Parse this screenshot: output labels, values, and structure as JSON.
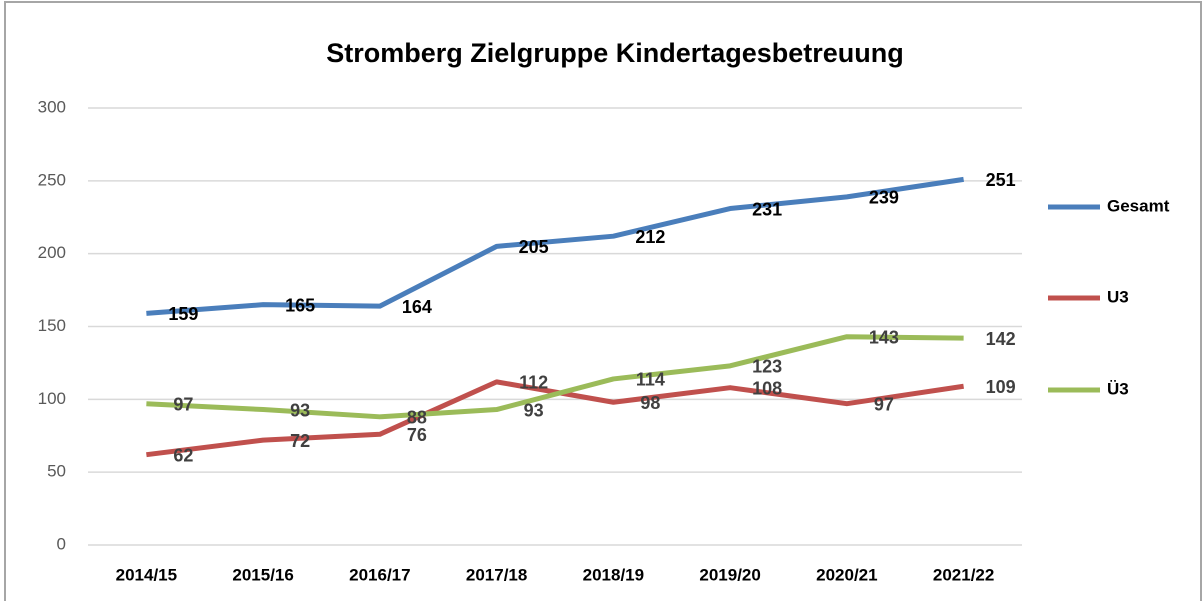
{
  "chart_data": {
    "type": "line",
    "title": "Stromberg Zielgruppe Kindertagesbetreuung",
    "categories": [
      "2014/15",
      "2015/16",
      "2016/17",
      "2017/18",
      "2018/19",
      "2019/20",
      "2020/21",
      "2021/22"
    ],
    "series": [
      {
        "name": "Gesamt",
        "color": "#4a7ebb",
        "values": [
          159,
          165,
          164,
          205,
          212,
          231,
          239,
          251
        ]
      },
      {
        "name": "U3",
        "color": "#c0504d",
        "values": [
          62,
          72,
          76,
          112,
          98,
          108,
          97,
          109
        ]
      },
      {
        "name": "Ü3",
        "color": "#9bbb59",
        "values": [
          97,
          93,
          88,
          93,
          114,
          123,
          143,
          142
        ]
      }
    ],
    "ylim": [
      0,
      300
    ],
    "yticks": [
      0,
      50,
      100,
      150,
      200,
      250,
      300
    ],
    "grid": true
  }
}
